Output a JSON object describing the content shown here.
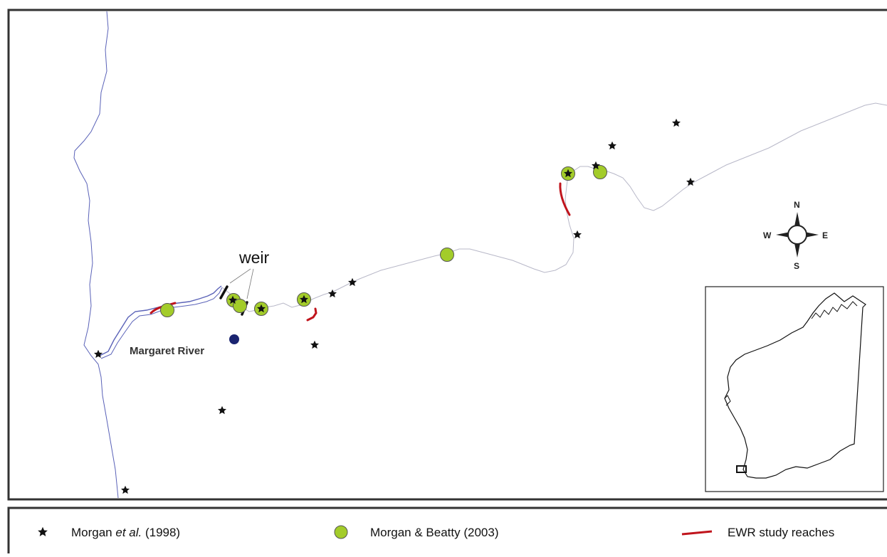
{
  "map": {
    "place_label": "Margaret River",
    "weir_label": "weir"
  },
  "compass": {
    "north": "N",
    "south": "S",
    "east": "E",
    "west": "W"
  },
  "legend": {
    "items": [
      {
        "label_prefix": "Morgan ",
        "label_italic": "et al.",
        "label_suffix": " (1998)",
        "symbol": "star-icon"
      },
      {
        "label": "Morgan & Beatty (2003)",
        "symbol": "green-circle-icon"
      },
      {
        "label": "EWR study reaches",
        "symbol": "red-line-icon"
      }
    ]
  },
  "colors": {
    "river": "#5a62b8",
    "tributary": "#b8b8c8",
    "green_site": "#a3cc2a",
    "ewr_reach": "#c0141c",
    "town": "#1a2470",
    "frame": "#333333"
  }
}
